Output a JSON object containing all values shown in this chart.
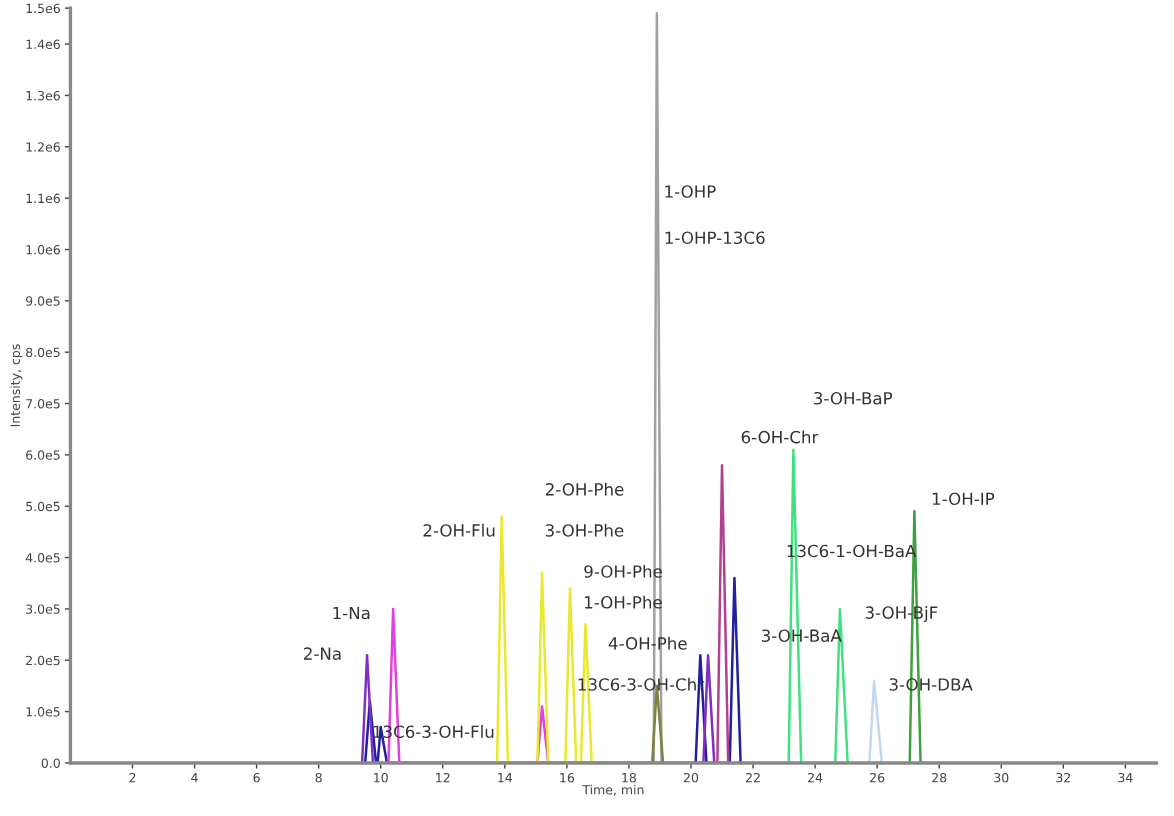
{
  "chart_data": {
    "type": "line",
    "xlabel": "Time, min",
    "ylabel": "Intensity, cps",
    "xlim": [
      0,
      35
    ],
    "xticks": [
      2,
      4,
      6,
      8,
      10,
      12,
      14,
      16,
      18,
      20,
      22,
      24,
      26,
      28,
      30,
      32,
      34
    ],
    "ylim": [
      0,
      1470000
    ],
    "yticks": [
      {
        "value": 0,
        "label": "0.0"
      },
      {
        "value": 100000,
        "label": "1.0e5"
      },
      {
        "value": 200000,
        "label": "2.0e5"
      },
      {
        "value": 300000,
        "label": "3.0e5"
      },
      {
        "value": 400000,
        "label": "4.0e5"
      },
      {
        "value": 500000,
        "label": "5.0e5"
      },
      {
        "value": 600000,
        "label": "6.0e5"
      },
      {
        "value": 700000,
        "label": "7.0e5"
      },
      {
        "value": 800000,
        "label": "8.0e5"
      },
      {
        "value": 900000,
        "label": "9.0e5"
      },
      {
        "value": 1000000,
        "label": "1.0e6"
      },
      {
        "value": 1100000,
        "label": "1.1e6"
      },
      {
        "value": 1200000,
        "label": "1.2e6"
      },
      {
        "value": 1300000,
        "label": "1.3e6"
      },
      {
        "value": 1400000,
        "label": "1.4e6"
      },
      {
        "value": 1470000,
        "label": "1.5e6"
      }
    ],
    "grid": false,
    "marker": "none",
    "line_style": "solid",
    "series": [
      {
        "color": "#2020a0",
        "x": [
          9.5,
          9.65,
          9.85,
          9.9,
          10.0,
          10.2,
          20.15,
          20.3,
          20.5,
          21.25,
          21.4,
          21.6
        ],
        "values": [
          0,
          120000,
          0,
          0,
          70000,
          0,
          0,
          210000,
          0,
          0,
          360000,
          0
        ]
      },
      {
        "color": "#8030c0",
        "x": [
          9.4,
          9.56,
          9.75,
          20.4,
          20.55,
          20.75
        ],
        "values": [
          0,
          210000,
          0,
          0,
          210000,
          0
        ]
      },
      {
        "color": "#e040e0",
        "x": [
          10.25,
          10.4,
          10.6,
          15.05,
          15.2,
          15.4
        ],
        "values": [
          0,
          300000,
          0,
          0,
          110000,
          0
        ]
      },
      {
        "color": "#b04090",
        "x": [
          20.85,
          21.0,
          21.2
        ],
        "values": [
          0,
          580000,
          0
        ]
      },
      {
        "color": "#e8e830",
        "x": [
          13.75,
          13.9,
          14.1,
          15.05,
          15.2,
          15.4,
          15.95,
          16.1,
          16.3,
          16.45,
          16.6,
          16.8
        ],
        "values": [
          0,
          480000,
          0,
          0,
          370000,
          0,
          0,
          340000,
          0,
          0,
          270000,
          0
        ]
      },
      {
        "color": "#a0a0a0",
        "x": [
          18.8,
          18.9,
          19.05
        ],
        "values": [
          0,
          1460000,
          0
        ]
      },
      {
        "color": "#808040",
        "x": [
          18.75,
          18.9,
          19.1
        ],
        "values": [
          0,
          150000,
          0
        ]
      },
      {
        "color": "#40e080",
        "x": [
          23.15,
          23.3,
          23.55,
          24.65,
          24.8,
          25.05
        ],
        "values": [
          0,
          610000,
          0,
          0,
          300000,
          0
        ]
      },
      {
        "color": "#c0d8f0",
        "x": [
          25.75,
          25.9,
          26.15
        ],
        "values": [
          0,
          160000,
          0
        ]
      },
      {
        "color": "#40a040",
        "x": [
          27.05,
          27.2,
          27.4
        ],
        "values": [
          0,
          490000,
          0
        ]
      }
    ],
    "annotations": [
      {
        "text": "1-Na",
        "x": 10.4,
        "y": 300000
      },
      {
        "text": "2-Na",
        "x": 9.56,
        "y": 210000
      },
      {
        "text": "13C6-3-OH-Flu",
        "x": 13.768,
        "y": 58000
      },
      {
        "text": "2-OH-Flu",
        "x": 13.89,
        "y": 450000
      },
      {
        "text": "2-OH-Phe",
        "x": 18.836,
        "y": 530000
      },
      {
        "text": "3-OH-Phe",
        "x": 18.831,
        "y": 450000
      },
      {
        "text": "9-OH-Phe",
        "x": 18.825,
        "y": 370000
      },
      {
        "text": "1-OH-Phe",
        "x": 18.821,
        "y": 310000
      },
      {
        "text": "4-OH-Phe",
        "x": 18.816,
        "y": 230000
      },
      {
        "text": "13C6-3-OH-Chr",
        "x": 18.9,
        "y": 150000
      },
      {
        "text": "1-OHP",
        "x": 18.936,
        "y": 1110000
      },
      {
        "text": "1-OHP-13C6",
        "x": 18.945,
        "y": 1020000
      },
      {
        "text": "6-OH-Chr",
        "x": 23.3,
        "y": 610000
      },
      {
        "text": "3-OH-BaP",
        "x": 23.3,
        "y": 610000
      },
      {
        "text": "13C6-1-OH-BaA",
        "x": 27.176,
        "y": 410000
      },
      {
        "text": "3-OH-BaA",
        "x": 24.7725,
        "y": 245000
      },
      {
        "text": "3-OH-BjF",
        "x": 27.139,
        "y": 290000
      },
      {
        "text": "1-OH-IP",
        "x": 27.2,
        "y": 490000
      },
      {
        "text": "3-OH-DBA",
        "x": 25.916,
        "y": 150000
      }
    ]
  }
}
